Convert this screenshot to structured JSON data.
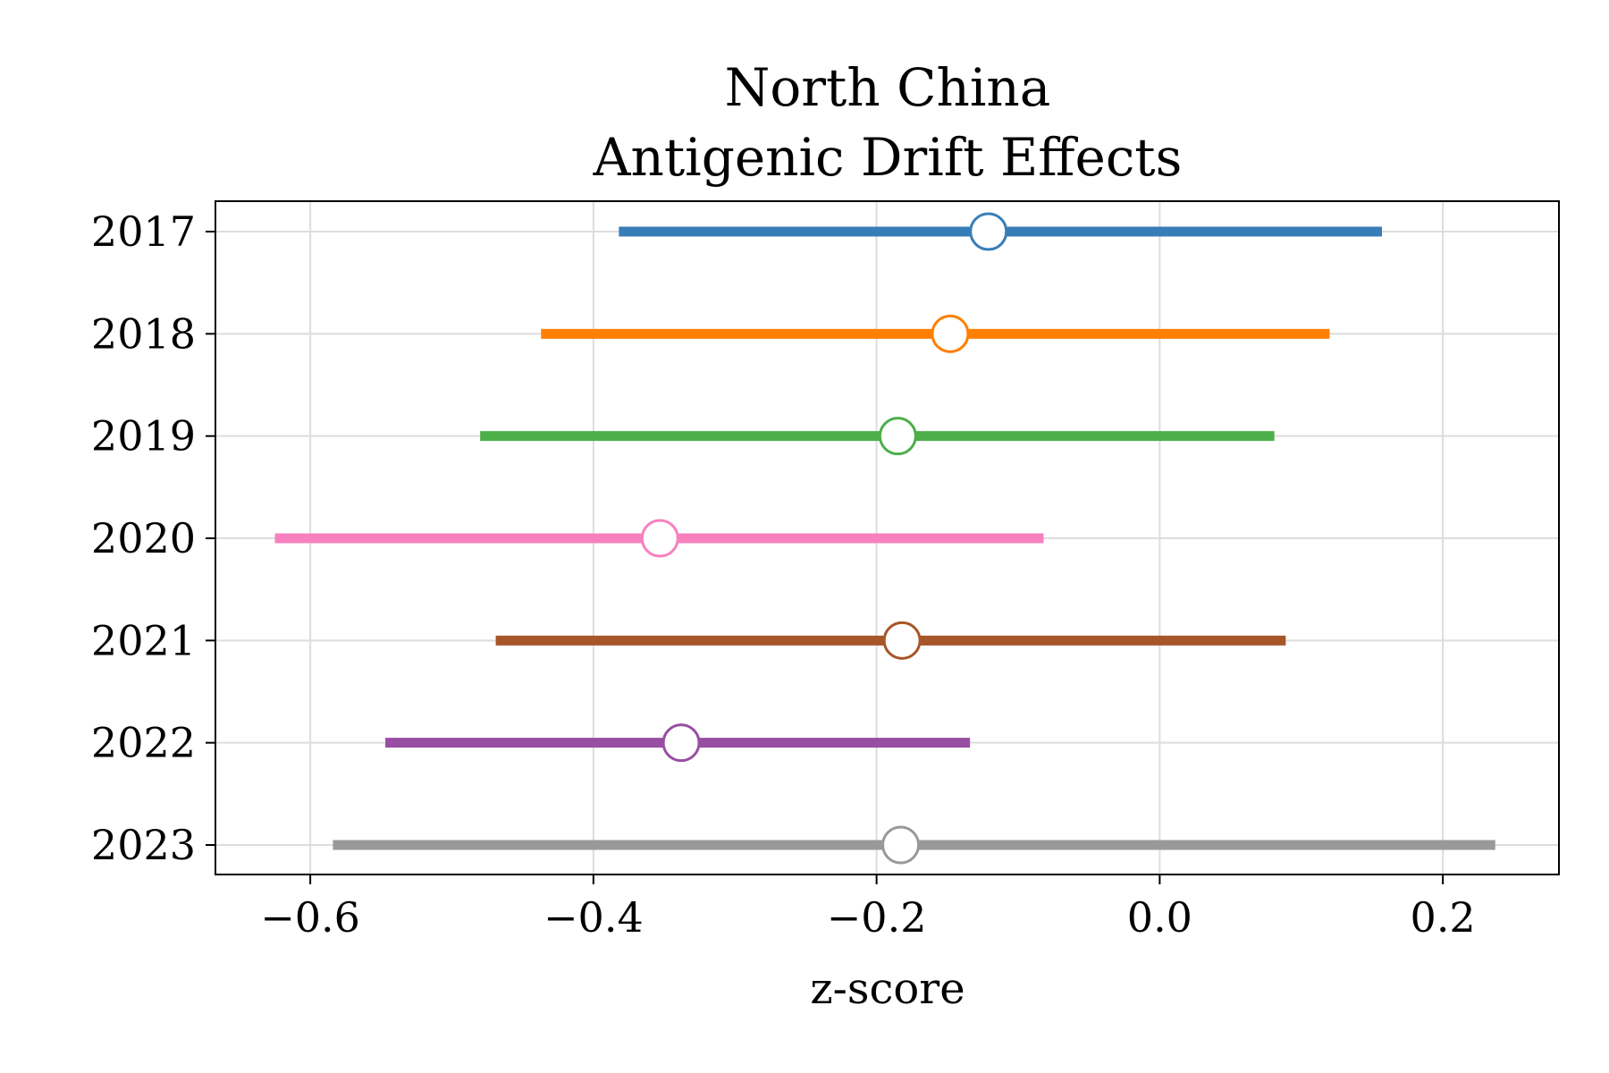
{
  "chart_data": {
    "type": "forest",
    "title": [
      "North China",
      "Antigenic Drift Effects"
    ],
    "xlabel": "z-score",
    "ylabel": "",
    "xlim": [
      -0.667,
      0.282
    ],
    "xticks": [
      -0.6,
      -0.4,
      -0.2,
      0.0,
      0.2
    ],
    "xtick_labels": [
      "−0.6",
      "−0.4",
      "−0.2",
      "0.0",
      "0.2"
    ],
    "grid": true,
    "rows": [
      {
        "label": "2017",
        "estimate": -0.121,
        "low": -0.382,
        "high": 0.157,
        "color": "#377eb8"
      },
      {
        "label": "2018",
        "estimate": -0.148,
        "low": -0.437,
        "high": 0.12,
        "color": "#ff7f00"
      },
      {
        "label": "2019",
        "estimate": -0.185,
        "low": -0.48,
        "high": 0.081,
        "color": "#4daf4a"
      },
      {
        "label": "2020",
        "estimate": -0.353,
        "low": -0.625,
        "high": -0.082,
        "color": "#f781bf"
      },
      {
        "label": "2021",
        "estimate": -0.182,
        "low": -0.469,
        "high": 0.089,
        "color": "#a65628"
      },
      {
        "label": "2022",
        "estimate": -0.338,
        "low": -0.547,
        "high": -0.134,
        "color": "#984ea3"
      },
      {
        "label": "2023",
        "estimate": -0.183,
        "low": -0.584,
        "high": 0.237,
        "color": "#999999"
      }
    ]
  }
}
